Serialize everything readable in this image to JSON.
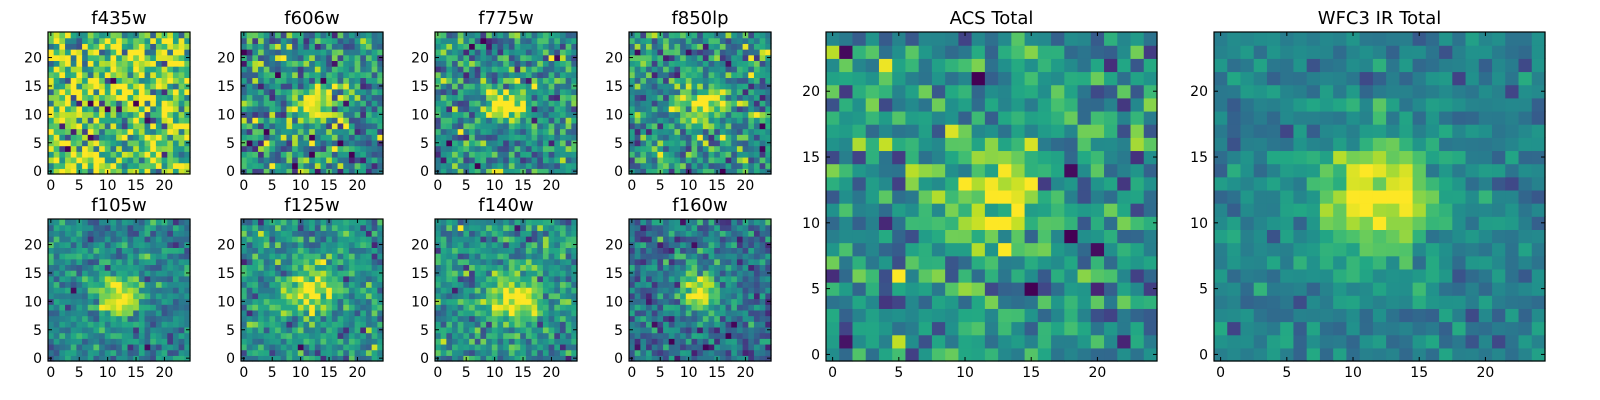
{
  "chart_data": [
    {
      "type": "heatmap",
      "title": "f435w",
      "grid_size": 25,
      "xticks": [
        0,
        5,
        10,
        15,
        20
      ],
      "yticks": [
        0,
        5,
        10,
        15,
        20
      ],
      "xlim": [
        -0.5,
        24.5
      ],
      "ylim": [
        -0.5,
        24.5
      ],
      "center": [
        12,
        12
      ],
      "peak_sigma": 0,
      "noise": 0.55,
      "base": 0.75
    },
    {
      "type": "heatmap",
      "title": "f606w",
      "grid_size": 25,
      "xticks": [
        0,
        5,
        10,
        15,
        20
      ],
      "yticks": [
        0,
        5,
        10,
        15,
        20
      ],
      "xlim": [
        -0.5,
        24.5
      ],
      "ylim": [
        -0.5,
        24.5
      ],
      "center": [
        12,
        12
      ],
      "peak_sigma": 2.2,
      "noise": 0.45,
      "base": 0.5
    },
    {
      "type": "heatmap",
      "title": "f775w",
      "grid_size": 25,
      "xticks": [
        0,
        5,
        10,
        15,
        20
      ],
      "yticks": [
        0,
        5,
        10,
        15,
        20
      ],
      "xlim": [
        -0.5,
        24.5
      ],
      "ylim": [
        -0.5,
        24.5
      ],
      "center": [
        12,
        12
      ],
      "peak_sigma": 2.2,
      "noise": 0.4,
      "base": 0.5
    },
    {
      "type": "heatmap",
      "title": "f850lp",
      "grid_size": 25,
      "xticks": [
        0,
        5,
        10,
        15,
        20
      ],
      "yticks": [
        0,
        5,
        10,
        15,
        20
      ],
      "xlim": [
        -0.5,
        24.5
      ],
      "ylim": [
        -0.5,
        24.5
      ],
      "center": [
        13,
        12
      ],
      "peak_sigma": 2.2,
      "noise": 0.4,
      "base": 0.5
    },
    {
      "type": "heatmap",
      "title": "f105w",
      "grid_size": 25,
      "xticks": [
        0,
        5,
        10,
        15,
        20
      ],
      "yticks": [
        0,
        5,
        10,
        15,
        20
      ],
      "xlim": [
        -0.5,
        24.5
      ],
      "ylim": [
        -0.5,
        24.5
      ],
      "center": [
        12,
        11
      ],
      "peak_sigma": 2.6,
      "noise": 0.25,
      "base": 0.45
    },
    {
      "type": "heatmap",
      "title": "f125w",
      "grid_size": 25,
      "xticks": [
        0,
        5,
        10,
        15,
        20
      ],
      "yticks": [
        0,
        5,
        10,
        15,
        20
      ],
      "xlim": [
        -0.5,
        24.5
      ],
      "ylim": [
        -0.5,
        24.5
      ],
      "center": [
        12,
        12
      ],
      "peak_sigma": 3.0,
      "noise": 0.3,
      "base": 0.5
    },
    {
      "type": "heatmap",
      "title": "f140w",
      "grid_size": 25,
      "xticks": [
        0,
        5,
        10,
        15,
        20
      ],
      "yticks": [
        0,
        5,
        10,
        15,
        20
      ],
      "xlim": [
        -0.5,
        24.5
      ],
      "ylim": [
        -0.5,
        24.5
      ],
      "center": [
        13,
        11
      ],
      "peak_sigma": 3.0,
      "noise": 0.3,
      "base": 0.5
    },
    {
      "type": "heatmap",
      "title": "f160w",
      "grid_size": 25,
      "xticks": [
        0,
        5,
        10,
        15,
        20
      ],
      "yticks": [
        0,
        5,
        10,
        15,
        20
      ],
      "xlim": [
        -0.5,
        24.5
      ],
      "ylim": [
        -0.5,
        24.5
      ],
      "center": [
        12,
        12
      ],
      "peak_sigma": 2.4,
      "noise": 0.3,
      "base": 0.38
    },
    {
      "type": "heatmap",
      "title": "ACS Total",
      "grid_size": 25,
      "xticks": [
        0,
        5,
        10,
        15,
        20
      ],
      "yticks": [
        0,
        5,
        10,
        15,
        20
      ],
      "xlim": [
        -0.5,
        24.5
      ],
      "ylim": [
        -0.5,
        24.5
      ],
      "center": [
        12,
        12
      ],
      "peak_sigma": 2.5,
      "noise": 0.35,
      "base": 0.5
    },
    {
      "type": "heatmap",
      "title": "WFC3 IR Total",
      "grid_size": 25,
      "xticks": [
        0,
        5,
        10,
        15,
        20
      ],
      "yticks": [
        0,
        5,
        10,
        15,
        20
      ],
      "xlim": [
        -0.5,
        24.5
      ],
      "ylim": [
        -0.5,
        24.5
      ],
      "center": [
        12,
        12
      ],
      "peak_sigma": 3.2,
      "noise": 0.18,
      "base": 0.42
    }
  ],
  "colormap": "viridis"
}
